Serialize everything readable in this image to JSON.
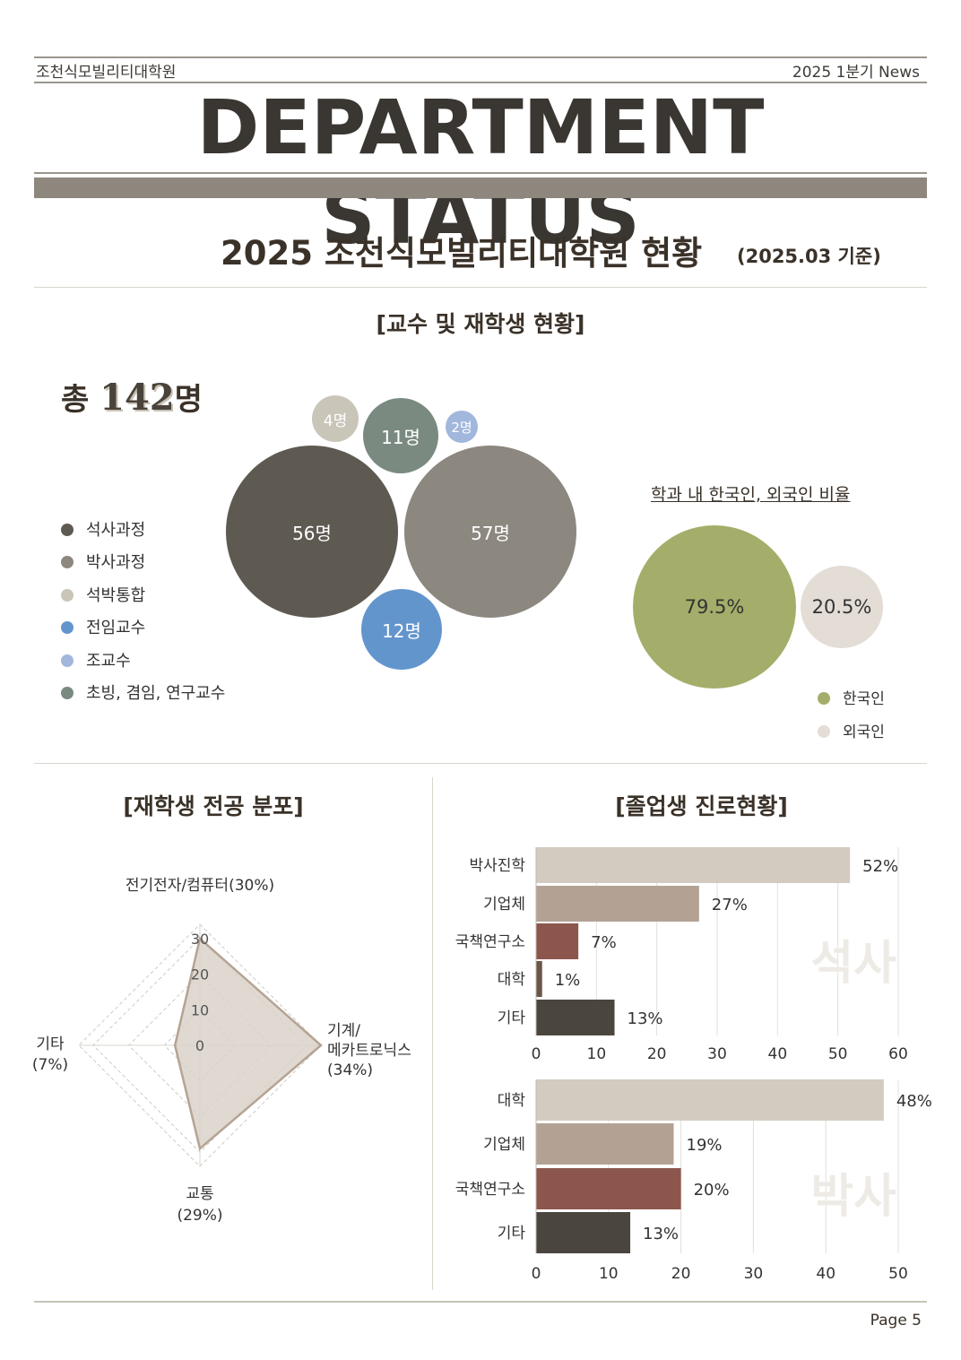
{
  "header": {
    "school_name": "조천식모빌리티대학원",
    "issue": "2025 1분기 News",
    "title": "DEPARTMENT STATUS"
  },
  "section": {
    "title": "2025 조천식모빌리티대학원 현황",
    "date": "(2025.03 기준)"
  },
  "staff": {
    "heading": "[교수 및 재학생 현황]",
    "total_prefix": "총",
    "total_number": "142",
    "total_suffix": "명",
    "legend": [
      {
        "label": "석사과정",
        "color": "#5e5a52"
      },
      {
        "label": "박사과정",
        "color": "#8c877f"
      },
      {
        "label": "석박통합",
        "color": "#c9c5b9"
      },
      {
        "label": "전임교수",
        "color": "#6395cd"
      },
      {
        "label": "조교수",
        "color": "#a2b7dc"
      },
      {
        "label": "초빙, 겸임, 연구교수",
        "color": "#7a8a80"
      }
    ],
    "bubbles": [
      {
        "label": "56명",
        "value": 56,
        "color": "#5e5a52"
      },
      {
        "label": "57명",
        "value": 57,
        "color": "#8c877f"
      },
      {
        "label": "4명",
        "value": 4,
        "color": "#c9c5b9"
      },
      {
        "label": "12명",
        "value": 12,
        "color": "#6395cd"
      },
      {
        "label": "2명",
        "value": 2,
        "color": "#a2b7dc"
      },
      {
        "label": "11명",
        "value": 11,
        "color": "#7a8a80"
      }
    ]
  },
  "ratio": {
    "title": "학과 내 한국인, 외국인 비율",
    "items": [
      {
        "label": "한국인",
        "value": "79.5%",
        "color": "#a4ae6a"
      },
      {
        "label": "외국인",
        "value": "20.5%",
        "color": "#e3ddd6"
      }
    ]
  },
  "majors": {
    "heading": "[재학생 전공 분포]",
    "chart_data": {
      "type": "radar",
      "categories": [
        "전기전자/컴퓨터(30%)",
        "기계/메카트로닉스(34%)",
        "교통(29%)",
        "기타(7%)"
      ],
      "values": [
        30,
        34,
        29,
        7
      ],
      "ticks": [
        "0",
        "10",
        "20",
        "30"
      ],
      "range": [
        0,
        30
      ]
    },
    "labels": {
      "top": "전기전자/컴퓨터(30%)",
      "right_1": "기계/",
      "right_2": "메카트로닉스",
      "right_3": "(34%)",
      "bottom_1": "교통",
      "bottom_2": "(29%)",
      "left_1": "기타",
      "left_2": "(7%)"
    }
  },
  "careers": {
    "heading": "[졸업생 진로현황]",
    "chart_data": [
      {
        "type": "bar",
        "orientation": "horizontal",
        "watermark": "석사",
        "categories": [
          "박사진학",
          "기업체",
          "국책연구소",
          "대학",
          "기타"
        ],
        "values": [
          52,
          27,
          7,
          1,
          13
        ],
        "value_labels": [
          "52%",
          "27%",
          "7%",
          "1%",
          "13%"
        ],
        "colors": [
          "#d3cbc0",
          "#b3a294",
          "#8c564d",
          "#6b5547",
          "#4b4540"
        ],
        "xlim": [
          0,
          60
        ],
        "xticks": [
          "0",
          "10",
          "20",
          "30",
          "40",
          "50",
          "60"
        ]
      },
      {
        "type": "bar",
        "orientation": "horizontal",
        "watermark": "박사",
        "categories": [
          "대학",
          "기업체",
          "국책연구소",
          "기타"
        ],
        "values": [
          48,
          19,
          20,
          13
        ],
        "value_labels": [
          "48%",
          "19%",
          "20%",
          "13%"
        ],
        "colors": [
          "#d3cbc0",
          "#b3a294",
          "#8c564d",
          "#4b4540"
        ],
        "xlim": [
          0,
          50
        ],
        "xticks": [
          "0",
          "10",
          "20",
          "30",
          "40",
          "50"
        ]
      }
    ]
  },
  "footer": {
    "page": "Page 5"
  }
}
